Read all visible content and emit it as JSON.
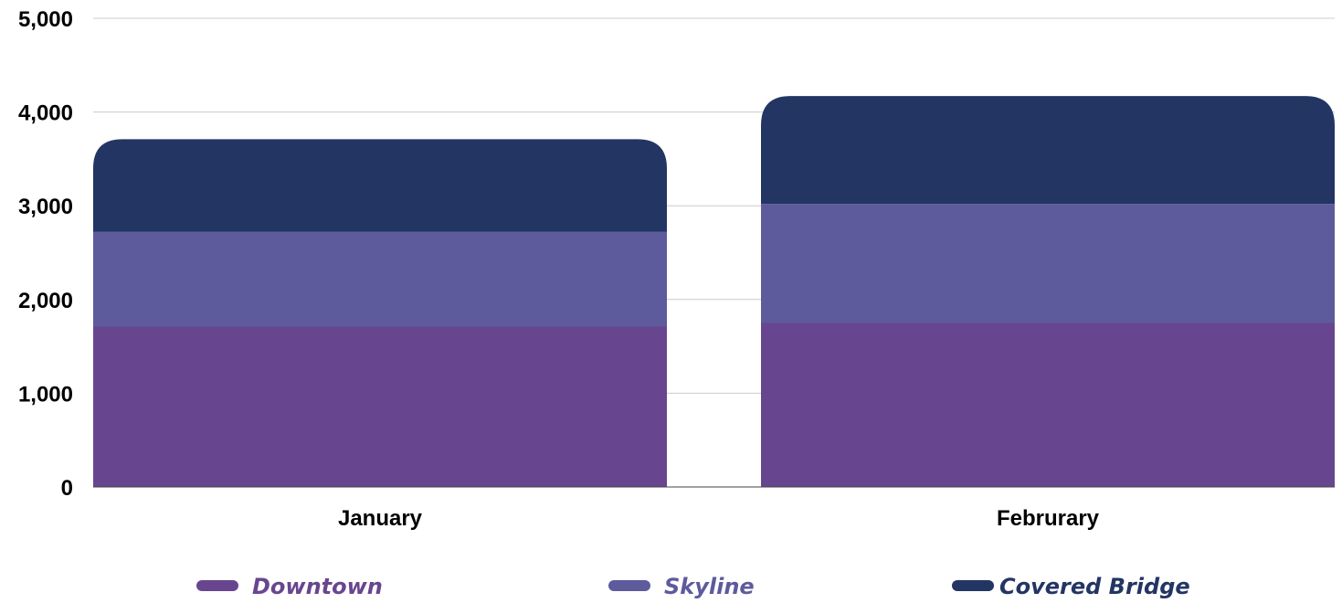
{
  "chart_data": {
    "type": "bar",
    "stacked": true,
    "title": "",
    "xlabel": "",
    "ylabel": "",
    "categories": [
      "January",
      "Februrary"
    ],
    "series": [
      {
        "name": "Downtown",
        "color": "#68468f",
        "values": [
          1710,
          1750
        ]
      },
      {
        "name": "Skyline",
        "color": "#5d5b9c",
        "values": [
          1010,
          1270
        ]
      },
      {
        "name": "Covered Bridge",
        "color": "#233563",
        "values": [
          990,
          1150
        ]
      }
    ],
    "ylim": [
      0,
      5000
    ],
    "yticks": [
      {
        "value": 0,
        "label": "0"
      },
      {
        "value": 1000,
        "label": "1,000"
      },
      {
        "value": 2000,
        "label": "2,000"
      },
      {
        "value": 3000,
        "label": "3,000"
      },
      {
        "value": 4000,
        "label": "4,000"
      },
      {
        "value": 5000,
        "label": "5,000"
      }
    ],
    "grid": true,
    "legend_position": "bottom"
  }
}
